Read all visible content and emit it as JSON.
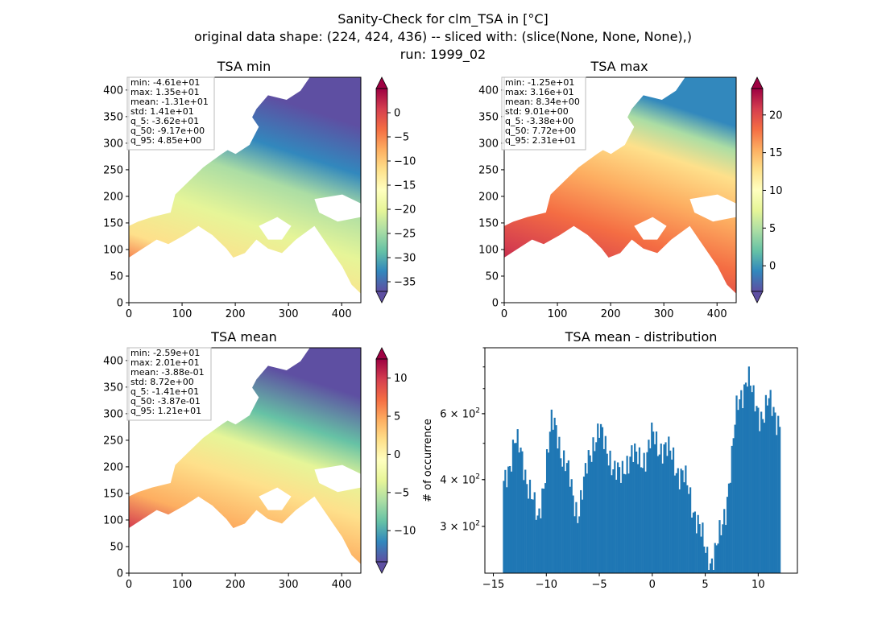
{
  "figure": {
    "title_lines": [
      "Sanity-Check for clm_TSA in [°C]",
      "original data shape: (224, 424, 436) -- sliced with: (slice(None, None, None),)",
      "run: 1999_02"
    ]
  },
  "chart_data": [
    {
      "type": "heatmap",
      "title": "TSA min",
      "xlim": [
        0,
        436
      ],
      "ylim": [
        0,
        424
      ],
      "xticks": [
        0,
        100,
        200,
        300,
        400
      ],
      "yticks": [
        0,
        50,
        100,
        150,
        200,
        250,
        300,
        350,
        400
      ],
      "colormap": "Spectral_r",
      "colorbar": {
        "vmin": -37,
        "vmax": 5,
        "ticks": [
          0,
          -5,
          -10,
          -15,
          -20,
          -25,
          -30,
          -35
        ],
        "extend": "both"
      },
      "stats": [
        "min: -4.61e+01",
        "max: 1.35e+01",
        "mean: -1.31e+01",
        "std: 1.41e+01",
        "q_5: -3.62e+01",
        "q_50: -9.17e+00",
        "q_95: 4.85e+00"
      ]
    },
    {
      "type": "heatmap",
      "title": "TSA max",
      "xlim": [
        0,
        436
      ],
      "ylim": [
        0,
        424
      ],
      "xticks": [
        0,
        100,
        200,
        300,
        400
      ],
      "yticks": [
        0,
        50,
        100,
        150,
        200,
        250,
        300,
        350,
        400
      ],
      "colormap": "Spectral_r",
      "colorbar": {
        "vmin": -3.4,
        "vmax": 23.5,
        "ticks": [
          20,
          15,
          10,
          5,
          0
        ],
        "extend": "both"
      },
      "stats": [
        "min: -1.25e+01",
        "max: 3.16e+01",
        "mean: 8.34e+00",
        "std: 9.01e+00",
        "q_5: -3.38e+00",
        "q_50: 7.72e+00",
        "q_95: 2.31e+01"
      ]
    },
    {
      "type": "heatmap",
      "title": "TSA mean",
      "xlim": [
        0,
        436
      ],
      "ylim": [
        0,
        424
      ],
      "xticks": [
        0,
        100,
        200,
        300,
        400
      ],
      "yticks": [
        0,
        50,
        100,
        150,
        200,
        250,
        300,
        350,
        400
      ],
      "colormap": "Spectral_r",
      "colorbar": {
        "vmin": -14.1,
        "vmax": 12.5,
        "ticks": [
          10,
          5,
          0,
          -5,
          -10
        ],
        "extend": "both"
      },
      "stats": [
        "min: -2.59e+01",
        "max: 2.01e+01",
        "mean: -3.88e-01",
        "std: 8.72e+00",
        "q_5: -1.41e+01",
        "q_50: -3.87e-01",
        "q_95: 1.21e+01"
      ]
    },
    {
      "type": "bar",
      "title": "TSA mean - distribution",
      "ylabel": "# of occurrence",
      "yscale": "log",
      "xlim": [
        -15.8,
        13.7
      ],
      "ylim": [
        225,
        900
      ],
      "xticks": [
        -15,
        -10,
        -5,
        0,
        5,
        10
      ],
      "yticks_labeled": [
        {
          "value": 300,
          "label": "3 × 10²"
        },
        {
          "value": 400,
          "label": "4 × 10²"
        },
        {
          "value": 600,
          "label": "6 × 10²"
        }
      ],
      "bin_range": [
        -14.1,
        12.1
      ],
      "color": "#1f77b4",
      "envelope": [
        [
          -14.0,
          380
        ],
        [
          -13.5,
          440
        ],
        [
          -13.0,
          520
        ],
        [
          -12.5,
          470
        ],
        [
          -12.0,
          420
        ],
        [
          -11.5,
          380
        ],
        [
          -11.0,
          320
        ],
        [
          -10.8,
          300
        ],
        [
          -10.5,
          350
        ],
        [
          -10.0,
          450
        ],
        [
          -9.5,
          560
        ],
        [
          -9.0,
          540
        ],
        [
          -8.5,
          470
        ],
        [
          -8.0,
          420
        ],
        [
          -7.5,
          360
        ],
        [
          -7.0,
          330
        ],
        [
          -6.5,
          380
        ],
        [
          -6.0,
          450
        ],
        [
          -5.5,
          520
        ],
        [
          -5.0,
          540
        ],
        [
          -4.5,
          490
        ],
        [
          -4.0,
          470
        ],
        [
          -3.5,
          420
        ],
        [
          -3.0,
          400
        ],
        [
          -2.5,
          450
        ],
        [
          -2.0,
          470
        ],
        [
          -1.5,
          450
        ],
        [
          -1.0,
          460
        ],
        [
          -0.5,
          470
        ],
        [
          0.0,
          520
        ],
        [
          0.5,
          500
        ],
        [
          1.0,
          490
        ],
        [
          1.5,
          470
        ],
        [
          2.0,
          460
        ],
        [
          2.5,
          420
        ],
        [
          3.0,
          400
        ],
        [
          3.5,
          370
        ],
        [
          4.0,
          330
        ],
        [
          4.5,
          290
        ],
        [
          5.0,
          260
        ],
        [
          5.5,
          245
        ],
        [
          6.0,
          255
        ],
        [
          6.5,
          290
        ],
        [
          7.0,
          350
        ],
        [
          7.5,
          450
        ],
        [
          8.0,
          620
        ],
        [
          8.5,
          700
        ],
        [
          9.0,
          760
        ],
        [
          9.5,
          650
        ],
        [
          10.0,
          620
        ],
        [
          10.5,
          590
        ],
        [
          11.0,
          640
        ],
        [
          11.5,
          620
        ],
        [
          12.0,
          570
        ]
      ]
    }
  ]
}
